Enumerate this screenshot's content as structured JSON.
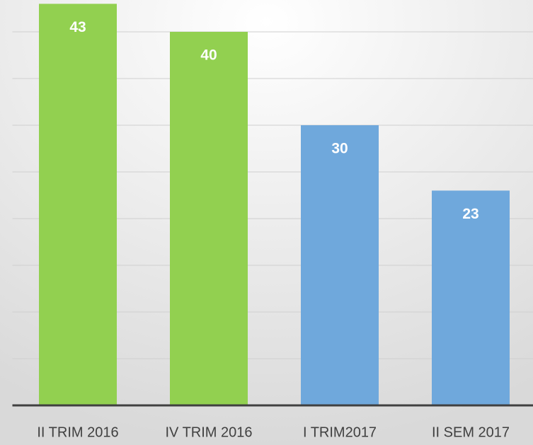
{
  "chart_data": {
    "type": "bar",
    "categories": [
      "II TRIM 2016",
      "IV TRIM 2016",
      "I TRIM2017",
      "II SEM 2017"
    ],
    "values": [
      43,
      40,
      30,
      23
    ],
    "colors": [
      "#92d050",
      "#92d050",
      "#6fa8dc",
      "#6fa8dc"
    ],
    "ylim": [
      0,
      45
    ],
    "yticks": [
      0,
      5,
      10,
      15,
      20,
      25,
      30,
      35,
      40
    ],
    "grid": true
  }
}
